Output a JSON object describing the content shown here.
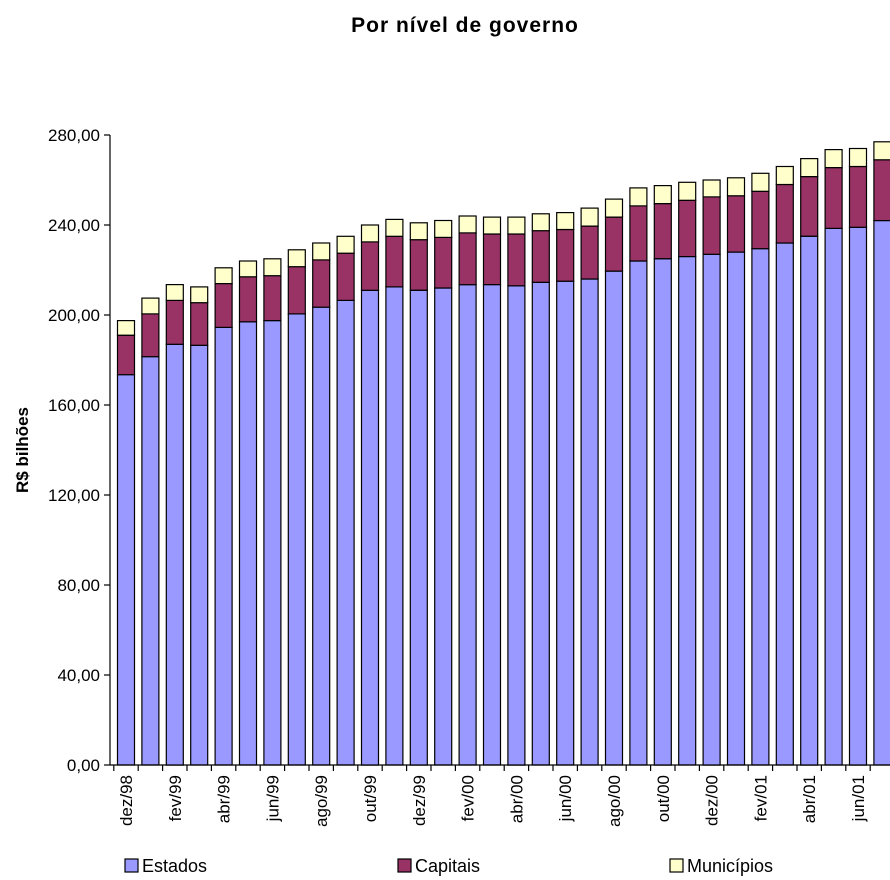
{
  "chart_data": {
    "type": "bar",
    "stacked": true,
    "title": "Por nível de governo",
    "ylabel": "R$ bilhões",
    "xlabel": "",
    "ylim": [
      0,
      280
    ],
    "yticks": [
      "0,00",
      "40,00",
      "80,00",
      "120,00",
      "160,00",
      "200,00",
      "240,00",
      "280,00"
    ],
    "grid": false,
    "legend_position": "bottom",
    "categories": [
      "dez/98",
      "jan/99",
      "fev/99",
      "mar/99",
      "abr/99",
      "mai/99",
      "jun/99",
      "jul/99",
      "ago/99",
      "set/99",
      "out/99",
      "nov/99",
      "dez/99",
      "jan/00",
      "fev/00",
      "mar/00",
      "abr/00",
      "mai/00",
      "jun/00",
      "jul/00",
      "ago/00",
      "set/00",
      "out/00",
      "nov/00",
      "dez/00",
      "jan/01",
      "fev/01",
      "mar/01",
      "abr/01",
      "mai/01",
      "jun/01",
      "jul/01"
    ],
    "x_tick_labels": [
      "dez/98",
      "",
      "fev/99",
      "",
      "abr/99",
      "",
      "jun/99",
      "",
      "ago/99",
      "",
      "out/99",
      "",
      "dez/99",
      "",
      "fev/00",
      "",
      "abr/00",
      "",
      "jun/00",
      "",
      "ago/00",
      "",
      "out/00",
      "",
      "dez/00",
      "",
      "fev/01",
      "",
      "abr/01",
      "",
      "jun/01",
      ""
    ],
    "series": [
      {
        "name": "Estados",
        "color": "#9999ff",
        "values": [
          173.5,
          181.5,
          187,
          186.5,
          194.5,
          197,
          197.5,
          200.5,
          203.5,
          206.5,
          211,
          212.5,
          211,
          212,
          213.5,
          213.5,
          213,
          214.5,
          215,
          216,
          219.5,
          224,
          225,
          226,
          227,
          228,
          229.5,
          232,
          235,
          238.5,
          239,
          242
        ]
      },
      {
        "name": "Capitais",
        "color": "#993366",
        "values": [
          17.5,
          19,
          19.5,
          19,
          19.5,
          20,
          20,
          21,
          21,
          21,
          21.5,
          22.5,
          22.5,
          22.5,
          23,
          22.5,
          23,
          23,
          23,
          23.5,
          24,
          24.5,
          24.5,
          25,
          25.5,
          25,
          25.5,
          26,
          26.5,
          27,
          27,
          27
        ]
      },
      {
        "name": "Municípios",
        "color": "#ffffcc",
        "values": [
          6.5,
          7,
          7,
          7,
          7,
          7,
          7.5,
          7.5,
          7.5,
          7.5,
          7.5,
          7.5,
          7.5,
          7.5,
          7.5,
          7.5,
          7.5,
          7.5,
          7.5,
          8,
          8,
          8,
          8,
          8,
          7.5,
          8,
          8,
          8,
          8,
          8,
          8,
          8
        ]
      }
    ]
  }
}
